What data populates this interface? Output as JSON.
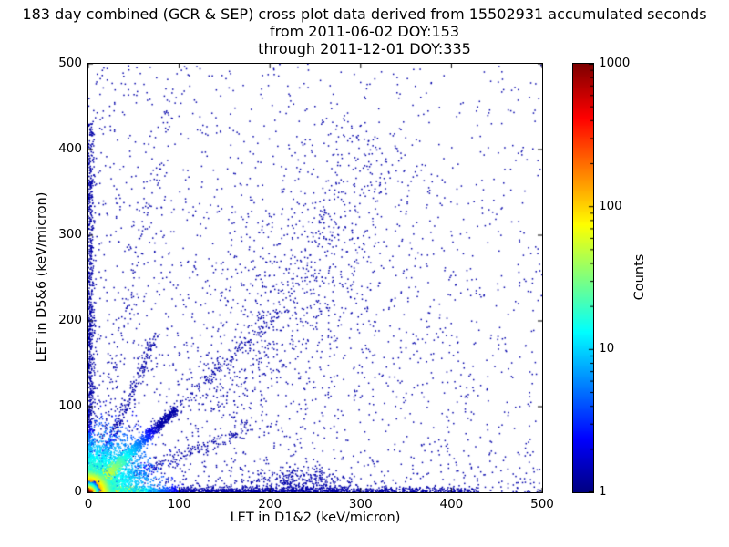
{
  "chart_data": {
    "type": "scatter",
    "title": "183 day combined (GCR & SEP) cross plot data derived from 15502931 accumulated seconds",
    "subtitle1": "from 2011-06-02 DOY:153",
    "subtitle2": "through 2011-12-01 DOY:335",
    "xlabel": "LET in D1&2 (keV/micron)",
    "ylabel": "LET in D5&6 (keV/micron)",
    "xlim": [
      0,
      500
    ],
    "ylim": [
      0,
      500
    ],
    "x_ticks": [
      0,
      100,
      200,
      300,
      400,
      500
    ],
    "y_ticks": [
      0,
      100,
      200,
      300,
      400,
      500
    ],
    "grid": false,
    "legend": "none",
    "colorbar": {
      "label": "Counts",
      "scale": "log",
      "min": 1,
      "max": 1000,
      "ticks": [
        1,
        10,
        100,
        1000
      ],
      "colormap": "jet"
    },
    "colors": {
      "point_base": "#0000aa",
      "jet_stops": [
        "#00007f",
        "#0000ff",
        "#00ffff",
        "#7fff7f",
        "#ffff00",
        "#ff7f00",
        "#ff0000",
        "#7f0000"
      ]
    },
    "random_seed": 42,
    "point_clusters": [
      {
        "name": "sparse-field-low",
        "type": "power",
        "count": 1500,
        "xmax": 500,
        "ymax": 500,
        "xpow": 1.6,
        "ypow": 2.2,
        "color": {
          "mode": "solid",
          "hex": "#0000aa"
        }
      },
      {
        "name": "sparse-field-wide",
        "type": "power",
        "count": 700,
        "xmax": 500,
        "ymax": 500,
        "xpow": 1.0,
        "ypow": 1.0,
        "color": {
          "mode": "solid",
          "hex": "#0000aa"
        }
      },
      {
        "name": "upper-diagonal-band",
        "type": "line",
        "count": 650,
        "p0": [
          140,
          90
        ],
        "p1": [
          330,
          410
        ],
        "sigma": 35,
        "tpow": 1,
        "color": {
          "mode": "solid",
          "hex": "#0000aa"
        }
      },
      {
        "name": "mid-right-diffuse",
        "type": "gaussian",
        "count": 300,
        "center": [
          265,
          235
        ],
        "sigma": [
          85,
          85
        ],
        "color": {
          "mode": "solid",
          "hex": "#0000aa"
        }
      },
      {
        "name": "bottom-blob-230",
        "type": "gaussian",
        "count": 320,
        "center": [
          230,
          12
        ],
        "sigma": [
          30,
          9
        ],
        "color": {
          "mode": "solid",
          "hex": "#0000aa"
        }
      },
      {
        "name": "left-edge-column",
        "type": "line",
        "count": 1000,
        "p0": [
          2,
          0
        ],
        "p1": [
          2,
          430
        ],
        "sigma": 2.5,
        "tpow": 1.8,
        "color": {
          "mode": "radial_jet",
          "radius": 90,
          "max_t": 0.6
        }
      },
      {
        "name": "bottom-edge-row",
        "type": "line",
        "count": 1800,
        "p0": [
          0,
          2
        ],
        "p1": [
          430,
          2
        ],
        "sigma": 2.5,
        "tpow": 2.2,
        "color": {
          "mode": "radial_jet",
          "radius": 110,
          "max_t": 0.9
        }
      },
      {
        "name": "fan-slope-half",
        "type": "line",
        "count": 350,
        "p0": [
          0,
          0
        ],
        "p1": [
          180,
          75
        ],
        "sigma": 4,
        "tpow": 1.8,
        "color": {
          "mode": "radial_jet",
          "radius": 90,
          "max_t": 0.55
        }
      },
      {
        "name": "fan-slope-2",
        "type": "line",
        "count": 450,
        "p0": [
          0,
          0
        ],
        "p1": [
          75,
          185
        ],
        "sigma": 3,
        "tpow": 1.8,
        "color": {
          "mode": "radial_jet",
          "radius": 85,
          "max_t": 0.6
        }
      },
      {
        "name": "fan-slope-5",
        "type": "line",
        "count": 180,
        "p0": [
          0,
          0
        ],
        "p1": [
          95,
          480
        ],
        "sigma": 5,
        "tpow": 1.6,
        "color": {
          "mode": "radial_jet",
          "radius": 70,
          "max_t": 0.5
        }
      },
      {
        "name": "origin-halo",
        "type": "gaussian",
        "count": 2200,
        "center": [
          13,
          13
        ],
        "sigma": [
          28,
          28
        ],
        "color": {
          "mode": "radial_jet",
          "radius": 130,
          "max_t": 0.55
        }
      },
      {
        "name": "main-diagonal",
        "type": "line",
        "count": 1400,
        "p0": [
          0,
          0
        ],
        "p1": [
          97,
          97
        ],
        "sigma": 2.6,
        "tpow": 1.5,
        "color": {
          "mode": "radial_jet",
          "radius": 115,
          "max_t": 0.8
        }
      },
      {
        "name": "diagonal-tail",
        "type": "line",
        "count": 130,
        "p0": [
          97,
          97
        ],
        "p1": [
          215,
          215
        ],
        "sigma": 4,
        "tpow": 1,
        "color": {
          "mode": "solid",
          "hex": "#0000aa"
        }
      },
      {
        "name": "origin-core",
        "type": "gaussian",
        "count": 5500,
        "center": [
          3,
          3
        ],
        "sigma": [
          8,
          8
        ],
        "color": {
          "mode": "radial_jet",
          "radius": 45,
          "max_t": 1
        }
      },
      {
        "name": "origin-hot-core",
        "type": "gaussian",
        "count": 3000,
        "center": [
          1.5,
          1.5
        ],
        "sigma": [
          3.5,
          3.5
        ],
        "color": {
          "mode": "radial_jet",
          "radius": 16,
          "max_t": 1
        }
      }
    ]
  }
}
